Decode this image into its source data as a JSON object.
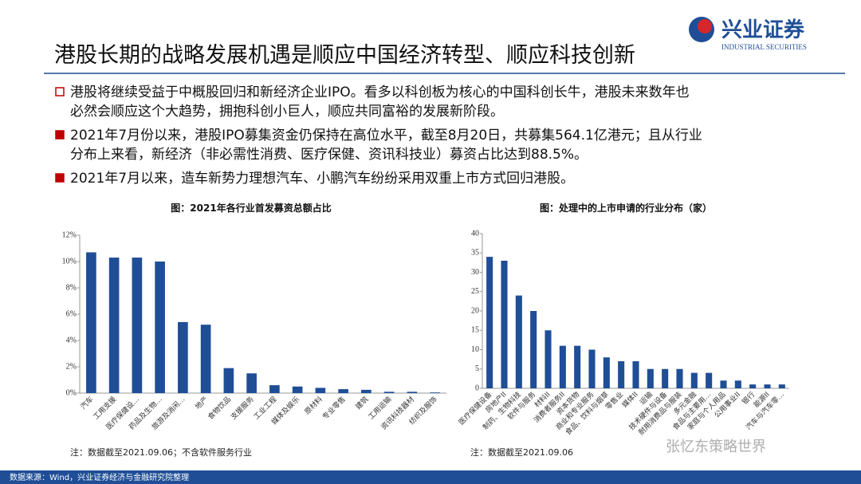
{
  "header": {
    "title": "港股长期的战略发展机遇是顺应中国经济转型、顺应科技创新",
    "logo": "兴业证券",
    "logo_sub": "INDUSTRIAL SECURITIES"
  },
  "bullets": [
    [
      "港股将继续受益于中概股回归和新经济企业IPO。看多以科创板为核心的中国科创长牛，港股未来数年也",
      "必然会顺应这个大趋势，拥抱科创小巨人，顺应共同富裕的发展新阶段。"
    ],
    [
      "2021年7月份以来，港股IPO募集资金仍保持在高位水平，截至8月20日，共募集564.1亿港元；且从行业",
      "分布上来看，新经济（非必需性消费、医疗保健、资讯科技业）募资占比达到88.5%。"
    ],
    [
      "2021年7月以来，造车新势力理想汽车、小鹏汽车纷纷采用双重上市方式回归港股。"
    ]
  ],
  "chart_data": [
    {
      "type": "bar",
      "title": "图：2021年各行业首发募资总额占比",
      "note": "注：数据截至2021.09.06；不含软件服务行业",
      "color": "#1f4e96",
      "categories": [
        "汽车",
        "工用支援",
        "医疗保健设…",
        "药品及生物…",
        "旅游及消闲…",
        "地产",
        "食物饮品",
        "支援服务",
        "工业工程",
        "媒体及娱乐",
        "原材料",
        "专业零售",
        "建筑",
        "工用运输",
        "资讯科技器材",
        "纺织及服饰"
      ],
      "values": [
        10.7,
        10.3,
        10.3,
        10.0,
        5.4,
        5.2,
        1.9,
        1.5,
        0.6,
        0.5,
        0.4,
        0.3,
        0.25,
        0.1,
        0.1,
        0.05
      ],
      "ylim": [
        0,
        12
      ],
      "yticks": [
        {
          "value": 0,
          "label": "0%"
        },
        {
          "value": 2,
          "label": "2%"
        },
        {
          "value": 4,
          "label": "4%"
        },
        {
          "value": 6,
          "label": "6%"
        },
        {
          "value": 8,
          "label": "8%"
        },
        {
          "value": 10,
          "label": "10%"
        },
        {
          "value": 12,
          "label": "12%"
        }
      ]
    },
    {
      "type": "bar",
      "title": "图：处理中的上市申请的行业分布（家）",
      "note": "注：数据截至2021.09.06",
      "color": "#1f4e96",
      "categories": [
        "医疗保健设备",
        "房地产II",
        "制药、生物科技",
        "软件与服务",
        "材料II",
        "消费者服务II",
        "资本货物",
        "商业和专业服务",
        "食品、饮料与烟草",
        "零售业",
        "媒体II",
        "运输",
        "技术硬件与设备",
        "耐用消费品与服装",
        "多元金融",
        "食品与主要用…",
        "家庭与个人用品",
        "公用事业II",
        "银行",
        "能源II",
        "汽车与汽车零…"
      ],
      "values": [
        34,
        33,
        24,
        20,
        15,
        11,
        11,
        10,
        8,
        7,
        7,
        5,
        5,
        5,
        4,
        4,
        2,
        2,
        1,
        1,
        1
      ],
      "ylim": [
        0,
        40
      ],
      "yticks": [
        0,
        5,
        10,
        15,
        20,
        25,
        30,
        35,
        40
      ]
    }
  ],
  "source": "数据来源：Wind，兴业证券经济与金融研究院整理",
  "watermark": "张忆东策略世界"
}
